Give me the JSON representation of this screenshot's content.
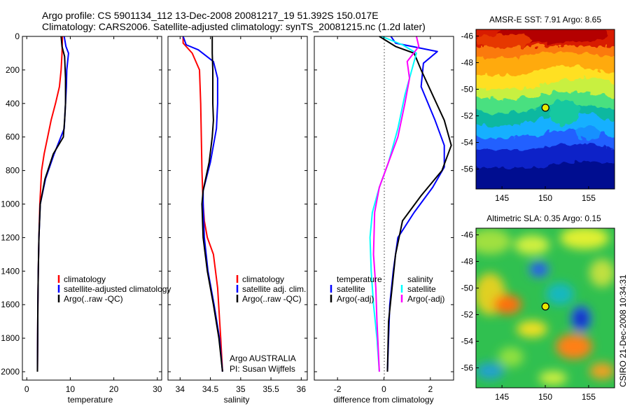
{
  "header": {
    "line1": "Argo profile: CS 5901134_112 13-Dec-2008 20081217_19 51.392S 150.017E",
    "line2": "Climatology: CARS2006. Satellite-adjusted climatology: synTS_20081215.nc (1.2d later)"
  },
  "side_text": "CSIRO 21-Dec-2008 10:34:31",
  "chart_data": [
    {
      "id": "temperature",
      "type": "line",
      "xlabel": "temperature",
      "xlim": [
        -1,
        31
      ],
      "ylim": [
        2050,
        0
      ],
      "xticks": [
        0,
        10,
        20,
        30
      ],
      "xtick_labels": [
        "0",
        "10",
        "20",
        "30"
      ],
      "yticks": [
        0,
        200,
        400,
        600,
        800,
        1000,
        1200,
        1400,
        1600,
        1800,
        2000
      ],
      "ytick_labels": [
        "0",
        "200",
        "400",
        "600",
        "800",
        "1000",
        "1200",
        "1400",
        "1600",
        "1800",
        "2000"
      ],
      "legend": [
        "climatology",
        "satellite-adjusted climatology",
        "Argo(..raw -QC)"
      ],
      "series": [
        {
          "name": "climatology",
          "color": "#ff0000",
          "x": [
            8.2,
            8.1,
            7.9,
            7.5,
            6.6,
            5.6,
            4.8,
            4.0,
            3.4,
            3.0,
            2.8,
            2.65,
            2.55,
            2.5,
            2.45
          ],
          "y": [
            0,
            100,
            200,
            300,
            400,
            500,
            600,
            700,
            800,
            1000,
            1200,
            1400,
            1600,
            1800,
            2000
          ]
        },
        {
          "name": "satellite-adjusted climatology",
          "color": "#0000ff",
          "x": [
            8.6,
            9.0,
            9.6,
            9.2,
            9.1,
            8.9,
            8.6,
            6.3,
            4.3,
            3.1,
            2.8,
            2.65,
            2.55,
            2.5,
            2.45
          ],
          "y": [
            0,
            60,
            100,
            200,
            300,
            400,
            550,
            700,
            850,
            1000,
            1200,
            1400,
            1600,
            1800,
            2000
          ]
        },
        {
          "name": "Argo(..raw -QC)",
          "color": "#000000",
          "x": [
            7.9,
            8.1,
            8.7,
            8.9,
            8.9,
            8.7,
            8.4,
            6.1,
            4.2,
            3.1,
            2.8,
            2.65,
            2.55,
            2.5,
            2.45
          ],
          "y": [
            0,
            60,
            120,
            250,
            400,
            500,
            600,
            700,
            850,
            1000,
            1200,
            1400,
            1600,
            1800,
            2000
          ]
        }
      ]
    },
    {
      "id": "salinity",
      "type": "line",
      "xlabel": "salinity",
      "xlim": [
        33.8,
        36.1
      ],
      "ylim": [
        2050,
        0
      ],
      "xticks": [
        34,
        34.5,
        35,
        35.5,
        36
      ],
      "xtick_labels": [
        "34",
        "34.5",
        "35",
        "35.5",
        "36"
      ],
      "yticks": [],
      "ytick_labels": [],
      "legend": [
        "climatology",
        "satellite adj. clim.",
        "Argo(..raw -QC)"
      ],
      "annotation": [
        "Argo AUSTRALIA",
        "PI: Susan Wijffels"
      ],
      "series": [
        {
          "name": "climatology",
          "color": "#ff0000",
          "x": [
            34.05,
            34.05,
            34.2,
            34.32,
            34.34,
            34.35,
            34.36,
            34.37,
            34.38,
            34.4,
            34.45,
            34.55,
            34.62,
            34.67,
            34.7
          ],
          "y": [
            0,
            40,
            100,
            200,
            400,
            600,
            800,
            900,
            1000,
            1100,
            1200,
            1300,
            1500,
            1800,
            2000
          ]
        },
        {
          "name": "satellite adj. clim.",
          "color": "#0000ff",
          "x": [
            34.05,
            34.1,
            34.3,
            34.55,
            34.62,
            34.62,
            34.6,
            34.5,
            34.38,
            34.38,
            34.4,
            34.46,
            34.56,
            34.65,
            34.7
          ],
          "y": [
            0,
            50,
            80,
            150,
            250,
            400,
            550,
            750,
            920,
            1000,
            1200,
            1400,
            1600,
            1800,
            2000
          ]
        },
        {
          "name": "Argo(..raw -QC)",
          "color": "#000000",
          "x": [
            34.53,
            34.53,
            34.54,
            34.54,
            34.55,
            34.53,
            34.48,
            34.38,
            34.36,
            34.38,
            34.45,
            34.55,
            34.64,
            34.7
          ],
          "y": [
            0,
            100,
            200,
            400,
            500,
            600,
            750,
            920,
            1000,
            1200,
            1400,
            1600,
            1800,
            2000
          ]
        }
      ]
    },
    {
      "id": "difference",
      "type": "line",
      "xlabel": "difference from climatology",
      "xlim": [
        -3,
        3
      ],
      "ylim": [
        2050,
        0
      ],
      "xticks": [
        -2,
        0,
        2
      ],
      "xtick_labels": [
        "-2",
        "0",
        "2"
      ],
      "yticks": [],
      "ytick_labels": [],
      "legend_left_title": "temperature",
      "legend_right_title": "salinity",
      "legend_left": [
        "satellite",
        "Argo(-adj)"
      ],
      "legend_right": [
        "satellite",
        "Argo(-adj)"
      ],
      "series": [
        {
          "name": "temperature satellite",
          "color": "#0000ff",
          "x": [
            0.3,
            0.5,
            2.3,
            1.7,
            1.6,
            2.2,
            2.6,
            2.6,
            2.1,
            1.3,
            0.6,
            0.4,
            0.25,
            0.2,
            0.15
          ],
          "y": [
            0,
            40,
            90,
            160,
            300,
            500,
            650,
            780,
            900,
            1050,
            1200,
            1400,
            1600,
            1800,
            2000
          ]
        },
        {
          "name": "temperature Argo(-adj)",
          "color": "#000000",
          "x": [
            -0.2,
            0.5,
            1.3,
            1.6,
            2.1,
            2.6,
            2.9,
            2.5,
            1.6,
            0.8,
            0.5,
            0.35,
            0.2,
            0.15
          ],
          "y": [
            0,
            60,
            100,
            200,
            350,
            500,
            650,
            800,
            950,
            1100,
            1300,
            1500,
            1700,
            2000
          ]
        },
        {
          "name": "salinity satellite",
          "color": "#00ffff",
          "x": [
            -0.1,
            0.8,
            1.4,
            1.2,
            0.9,
            0.6,
            0.2,
            -0.2,
            -0.5,
            -0.6,
            -0.55,
            -0.45,
            -0.3,
            -0.2
          ],
          "y": [
            0,
            50,
            100,
            200,
            350,
            550,
            750,
            900,
            1050,
            1200,
            1400,
            1600,
            1800,
            2000
          ]
        },
        {
          "name": "salinity Argo(-adj)",
          "color": "#ff00ff",
          "x": [
            1.4,
            1.5,
            1.0,
            1.1,
            0.9,
            0.6,
            0.2,
            -0.2,
            -0.4,
            -0.45,
            -0.35,
            -0.3,
            -0.25,
            -0.2
          ],
          "y": [
            0,
            60,
            150,
            250,
            400,
            600,
            750,
            900,
            1050,
            1300,
            1500,
            1700,
            1850,
            2000
          ]
        }
      ]
    },
    {
      "id": "amsre-map",
      "type": "heatmap",
      "title": "AMSR-E SST: 7.91 Argo: 8.65",
      "xlim": [
        142,
        158
      ],
      "ylim": [
        -57.5,
        -45.5
      ],
      "xticks": [
        145,
        150,
        155
      ],
      "xtick_labels": [
        "145",
        "150",
        "155"
      ],
      "yticks": [
        -46,
        -48,
        -50,
        -52,
        -54,
        -56
      ],
      "ytick_labels": [
        "-46",
        "-48",
        "-50",
        "-52",
        "-54",
        "-56"
      ],
      "marker": {
        "lon": 150.017,
        "lat": -51.392
      }
    },
    {
      "id": "sla-map",
      "type": "heatmap",
      "title": "Altimetric SLA: 0.35 Argo: 0.15",
      "xlim": [
        142,
        158
      ],
      "ylim": [
        -57.5,
        -45.5
      ],
      "xticks": [
        145,
        150,
        155
      ],
      "xtick_labels": [
        "145",
        "150",
        "155"
      ],
      "yticks": [
        -46,
        -48,
        -50,
        -52,
        -54,
        -56
      ],
      "ytick_labels": [
        "-46",
        "-48",
        "-50",
        "-52",
        "-54",
        "-56"
      ],
      "marker": {
        "lon": 150.017,
        "lat": -51.392
      }
    }
  ]
}
